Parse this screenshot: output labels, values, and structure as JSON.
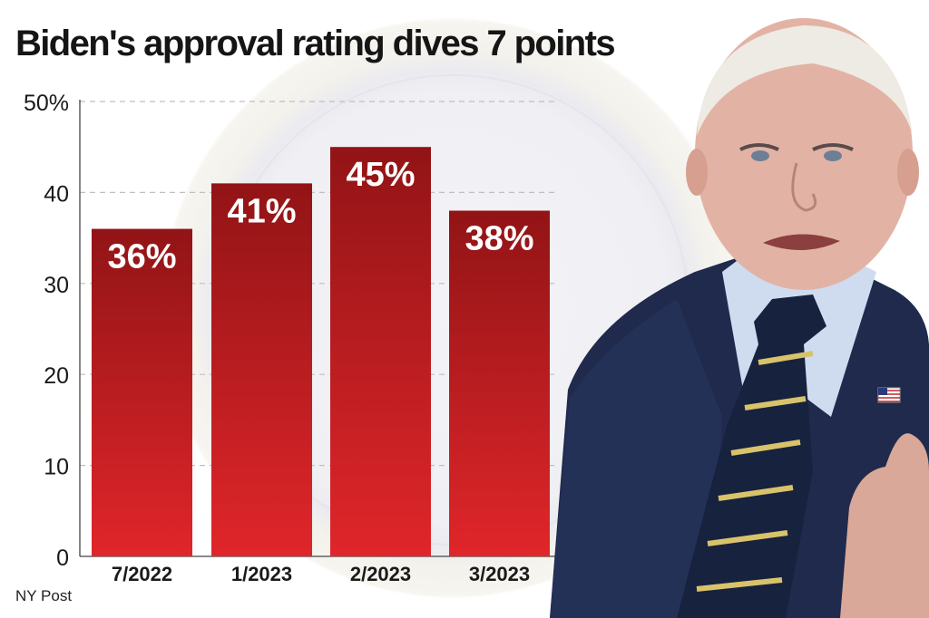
{
  "title": "Biden's approval rating dives 7 points",
  "source": "NY Post",
  "colors": {
    "bar_top": "#921416",
    "bar_bottom": "#e0262a",
    "gridline": "#bfbfbf",
    "axis_text": "#1a1a1a"
  },
  "chart_data": {
    "type": "bar",
    "title": "Biden's approval rating dives 7 points",
    "categories": [
      "7/2022",
      "1/2023",
      "2/2023",
      "3/2023"
    ],
    "values": [
      36,
      41,
      45,
      38
    ],
    "data_labels": [
      "36%",
      "41%",
      "45%",
      "38%"
    ],
    "yticks": [
      0,
      10,
      20,
      30,
      40,
      50
    ],
    "ytick_labels": [
      "0",
      "10",
      "20",
      "30",
      "40",
      "50%"
    ],
    "ylim": [
      0,
      50
    ],
    "xlabel": "",
    "ylabel": "",
    "grid": "dashed horizontal",
    "legend": "none"
  },
  "photo": {
    "icon": "president-portrait",
    "flag_pin_icon": "us-flag-pin-icon"
  }
}
